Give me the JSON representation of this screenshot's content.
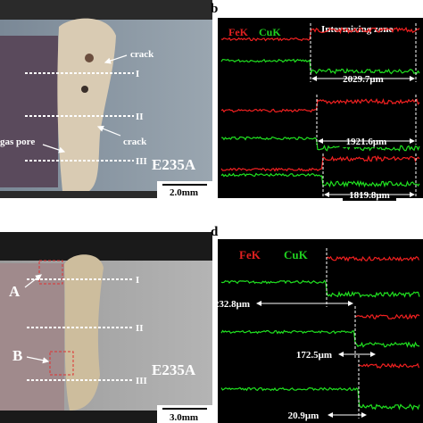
{
  "panel_a": {
    "annotations": [
      "crack",
      "crack",
      "gas pore"
    ],
    "lines": [
      "I",
      "II",
      "III"
    ],
    "material": "E235A",
    "scale": "2.0mm"
  },
  "panel_b": {
    "label": "b",
    "legend": [
      "FeK",
      "CuK"
    ],
    "zone": "Intermixing zone",
    "distances": [
      "2029.7μm",
      "1921.6μm",
      "1819.8μm"
    ]
  },
  "panel_c": {
    "markers": [
      "A",
      "B"
    ],
    "lines": [
      "I",
      "II",
      "III"
    ],
    "material": "E235A",
    "scale": "3.0mm"
  },
  "panel_d": {
    "label": "d",
    "legend": [
      "FeK",
      "CuK"
    ],
    "distances": [
      "232.8μm",
      "172.5μm",
      "20.9μm"
    ]
  }
}
